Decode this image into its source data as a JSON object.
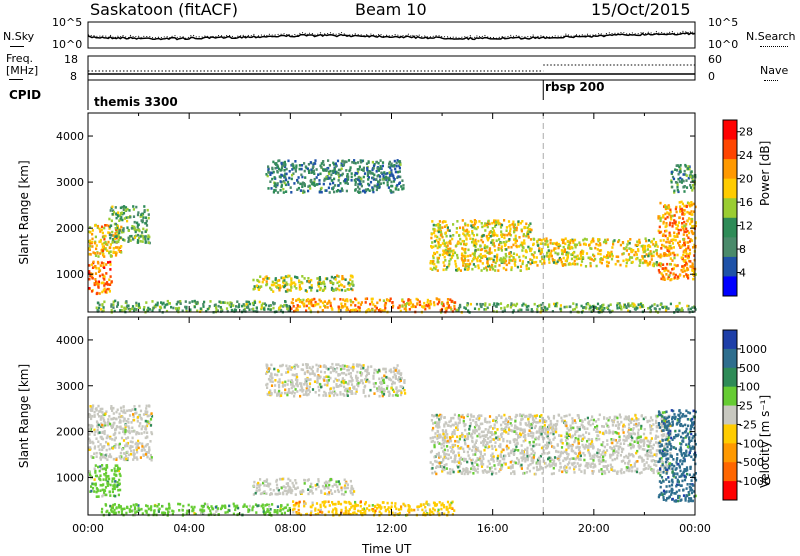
{
  "header": {
    "station": "Saskatoon (fitACF)",
    "beam": "Beam 10",
    "date": "15/Oct/2015"
  },
  "noise_panel": {
    "left_label": "N.Sky",
    "right_label": "N.Search",
    "left_ticks": [
      "10^5",
      "10^0"
    ],
    "right_ticks": [
      "10^5",
      "10^0"
    ]
  },
  "freq_panel": {
    "left_label_1": "Freq.",
    "left_label_2": "[MHz]",
    "right_label": "Nave",
    "left_ticks": [
      "18",
      "8"
    ],
    "right_ticks": [
      "60",
      "0"
    ]
  },
  "cpid_panel": {
    "label": "CPID",
    "segments": [
      {
        "name": "themis 3300",
        "start_hour": 0
      },
      {
        "name": "rbsp 200",
        "start_hour": 18
      }
    ]
  },
  "x_axis": {
    "label": "Time UT",
    "ticks": [
      "00:00",
      "04:00",
      "08:00",
      "12:00",
      "16:00",
      "20:00",
      "00:00"
    ]
  },
  "chart_data": [
    {
      "type": "heatmap",
      "title": "",
      "xlabel": "Time UT",
      "ylabel": "Slant Range [km]",
      "xlim": [
        0,
        24
      ],
      "ylim": [
        180,
        4500
      ],
      "y_ticks": [
        "1000",
        "2000",
        "3000",
        "4000"
      ],
      "colorbar_label": "Power [dB]",
      "colorbar_ticks": [
        "4",
        "8",
        "12",
        "16",
        "20",
        "24",
        "28"
      ],
      "colorbar_range": [
        0,
        30
      ],
      "colors": [
        "#0000ff",
        "#1e52a8",
        "#4a8a6a",
        "#2e8b57",
        "#9acd32",
        "#ffcc00",
        "#ff9900",
        "#ff4500",
        "#ff0000"
      ],
      "regions": [
        {
          "start_hour": 0.0,
          "end_hour": 0.9,
          "range_low": 600,
          "range_high": 1300,
          "value": 24
        },
        {
          "start_hour": 0.0,
          "end_hour": 1.3,
          "range_low": 1400,
          "range_high": 2100,
          "value": 20
        },
        {
          "start_hour": 0.8,
          "end_hour": 2.4,
          "range_low": 1700,
          "range_high": 2500,
          "value": 12
        },
        {
          "start_hour": 0.3,
          "end_hour": 8.0,
          "range_low": 200,
          "range_high": 450,
          "value": 12
        },
        {
          "start_hour": 8.0,
          "end_hour": 14.5,
          "range_low": 200,
          "range_high": 500,
          "value": 22
        },
        {
          "start_hour": 6.5,
          "end_hour": 10.5,
          "range_low": 650,
          "range_high": 1000,
          "value": 16
        },
        {
          "start_hour": 14.5,
          "end_hour": 24.0,
          "range_low": 200,
          "range_high": 400,
          "value": 12
        },
        {
          "start_hour": 7.0,
          "end_hour": 12.5,
          "range_low": 2800,
          "range_high": 3500,
          "value": 8
        },
        {
          "start_hour": 13.5,
          "end_hour": 17.5,
          "range_low": 1100,
          "range_high": 2200,
          "value": 18
        },
        {
          "start_hour": 17.5,
          "end_hour": 22.5,
          "range_low": 1200,
          "range_high": 1800,
          "value": 18
        },
        {
          "start_hour": 22.5,
          "end_hour": 24.0,
          "range_low": 900,
          "range_high": 2600,
          "value": 22
        },
        {
          "start_hour": 23.0,
          "end_hour": 24.0,
          "range_low": 2800,
          "range_high": 3400,
          "value": 10
        }
      ]
    },
    {
      "type": "heatmap",
      "title": "",
      "xlabel": "Time UT",
      "ylabel": "Slant Range [km]",
      "xlim": [
        0,
        24
      ],
      "ylim": [
        180,
        4500
      ],
      "y_ticks": [
        "1000",
        "2000",
        "3000",
        "4000"
      ],
      "colorbar_label": "Velocity [m s⁻¹]",
      "colorbar_ticks": [
        "1000",
        "500",
        "100",
        "25",
        "-25",
        "-100",
        "-500",
        "-1000"
      ],
      "colors": [
        "#1e3fa8",
        "#2e6e8e",
        "#2e8b57",
        "#66cc33",
        "#c8c8c0",
        "#ffcc00",
        "#ff9900",
        "#ff6600",
        "#ff0000"
      ],
      "regions": [
        {
          "start_hour": 0.0,
          "end_hour": 1.3,
          "range_low": 600,
          "range_high": 1300,
          "value": 100
        },
        {
          "start_hour": 0.0,
          "end_hour": 2.5,
          "range_low": 1400,
          "range_high": 2600,
          "value": 0
        },
        {
          "start_hour": 0.5,
          "end_hour": 8.0,
          "range_low": 200,
          "range_high": 450,
          "value": 100
        },
        {
          "start_hour": 6.5,
          "end_hour": 10.5,
          "range_low": 650,
          "range_high": 1000,
          "value": 0
        },
        {
          "start_hour": 8.0,
          "end_hour": 14.5,
          "range_low": 200,
          "range_high": 500,
          "value": -100
        },
        {
          "start_hour": 7.0,
          "end_hour": 12.5,
          "range_low": 2800,
          "range_high": 3500,
          "value": 0
        },
        {
          "start_hour": 13.5,
          "end_hour": 23.0,
          "range_low": 1100,
          "range_high": 2400,
          "value": 0
        },
        {
          "start_hour": 22.5,
          "end_hour": 24.0,
          "range_low": 500,
          "range_high": 2500,
          "value": 500
        }
      ]
    }
  ]
}
